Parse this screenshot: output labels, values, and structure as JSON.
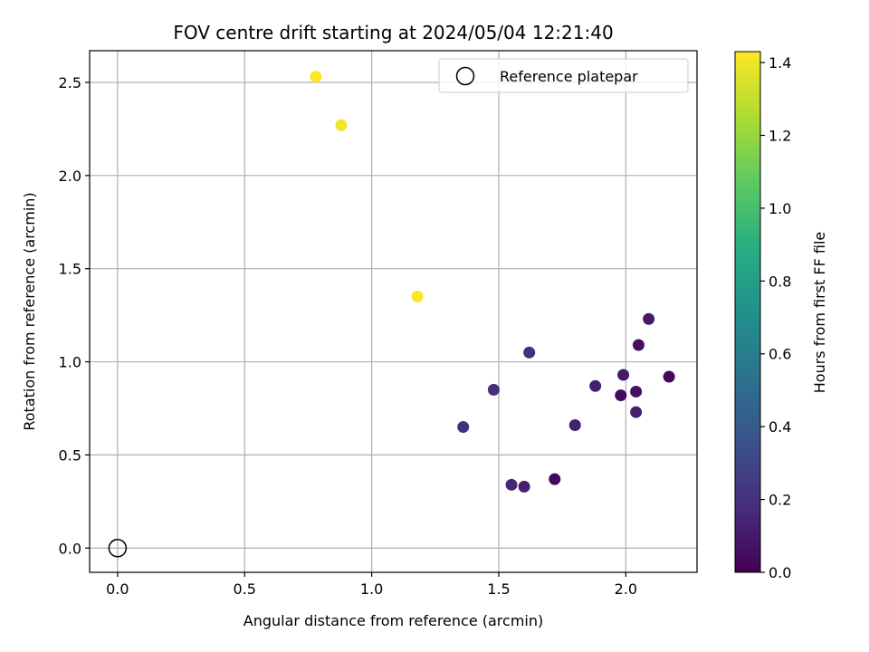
{
  "chart_data": {
    "type": "scatter",
    "title": "FOV centre drift starting at 2024/05/04 12:21:40",
    "xlabel": "Angular distance from reference (arcmin)",
    "ylabel": "Rotation from reference (arcmin)",
    "xlim": [
      -0.11,
      2.28
    ],
    "ylim": [
      -0.13,
      2.67
    ],
    "xticks": [
      "0.0",
      "0.5",
      "1.0",
      "1.5",
      "2.0"
    ],
    "yticks": [
      "0.0",
      "0.5",
      "1.0",
      "1.5",
      "2.0",
      "2.5"
    ],
    "grid": true,
    "legend": {
      "placement": "top-right",
      "entries": [
        "Reference platepar"
      ]
    },
    "reference_point": {
      "x": 0.0,
      "y": 0.0
    },
    "colorbar": {
      "label": "Hours from first FF file",
      "colormap": "viridis",
      "range": [
        0.0,
        1.43
      ],
      "ticks": [
        "0.0",
        "0.2",
        "0.4",
        "0.6",
        "0.8",
        "1.0",
        "1.2",
        "1.4"
      ]
    },
    "points": [
      {
        "x": 0.78,
        "y": 2.53,
        "c": 1.43
      },
      {
        "x": 0.88,
        "y": 2.27,
        "c": 1.4
      },
      {
        "x": 1.18,
        "y": 1.35,
        "c": 1.42
      },
      {
        "x": 1.36,
        "y": 0.65,
        "c": 0.2
      },
      {
        "x": 1.48,
        "y": 0.85,
        "c": 0.19
      },
      {
        "x": 1.62,
        "y": 1.05,
        "c": 0.19
      },
      {
        "x": 1.55,
        "y": 0.34,
        "c": 0.15
      },
      {
        "x": 1.6,
        "y": 0.33,
        "c": 0.12
      },
      {
        "x": 1.72,
        "y": 0.37,
        "c": 0.03
      },
      {
        "x": 1.8,
        "y": 0.66,
        "c": 0.13
      },
      {
        "x": 1.88,
        "y": 0.87,
        "c": 0.12
      },
      {
        "x": 1.98,
        "y": 0.82,
        "c": 0.03
      },
      {
        "x": 1.99,
        "y": 0.93,
        "c": 0.1
      },
      {
        "x": 2.04,
        "y": 0.84,
        "c": 0.07
      },
      {
        "x": 2.04,
        "y": 0.73,
        "c": 0.12
      },
      {
        "x": 2.05,
        "y": 1.09,
        "c": 0.06
      },
      {
        "x": 2.09,
        "y": 1.23,
        "c": 0.1
      },
      {
        "x": 2.17,
        "y": 0.92,
        "c": 0.02
      }
    ]
  }
}
